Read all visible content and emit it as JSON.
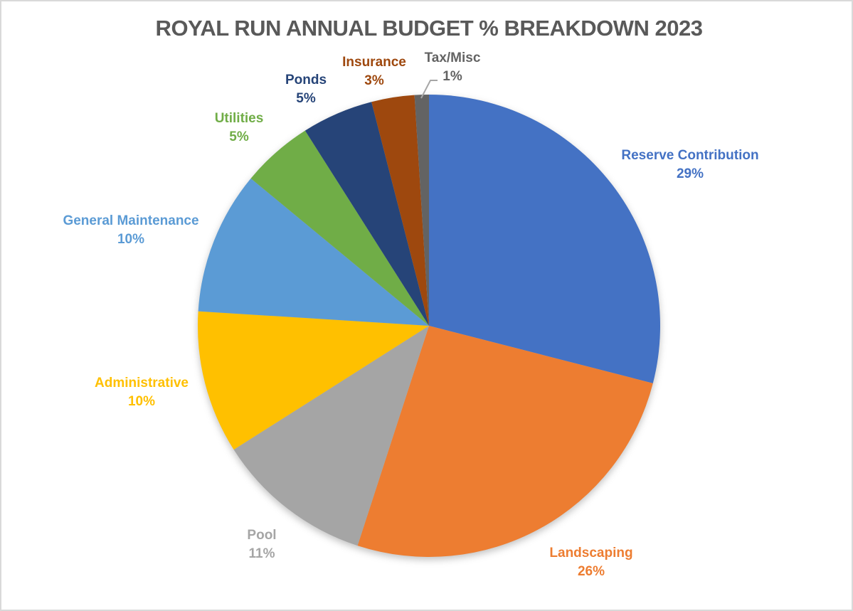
{
  "title": "ROYAL RUN ANNUAL BUDGET % BREAKDOWN 2023",
  "title_color": "#595959",
  "chart_data": {
    "type": "pie",
    "title": "ROYAL RUN ANNUAL BUDGET % BREAKDOWN 2023",
    "start_angle_deg": 0,
    "direction": "clockwise",
    "background": "#FFFFFF",
    "leader_line_color": "#A6A6A6",
    "slices": [
      {
        "label": "Reserve Contribution",
        "value": 29,
        "pct_label": "29%",
        "color": "#4472C4",
        "label_color": "#4472C4"
      },
      {
        "label": "Landscaping",
        "value": 26,
        "pct_label": "26%",
        "color": "#ED7D31",
        "label_color": "#ED7D31"
      },
      {
        "label": "Pool",
        "value": 11,
        "pct_label": "11%",
        "color": "#A5A5A5",
        "label_color": "#A5A5A5"
      },
      {
        "label": "Administrative",
        "value": 10,
        "pct_label": "10%",
        "color": "#FFC000",
        "label_color": "#FFC000"
      },
      {
        "label": "General Maintenance",
        "value": 10,
        "pct_label": "10%",
        "color": "#5B9BD5",
        "label_color": "#5B9BD5"
      },
      {
        "label": "Utilities",
        "value": 5,
        "pct_label": "5%",
        "color": "#70AD47",
        "label_color": "#70AD47"
      },
      {
        "label": "Ponds",
        "value": 5,
        "pct_label": "5%",
        "color": "#264478",
        "label_color": "#264478"
      },
      {
        "label": "Insurance",
        "value": 3,
        "pct_label": "3%",
        "color": "#9E480E",
        "label_color": "#9E480E"
      },
      {
        "label": "Tax/Misc",
        "value": 1,
        "pct_label": "1%",
        "color": "#636363",
        "label_color": "#636363"
      }
    ]
  }
}
